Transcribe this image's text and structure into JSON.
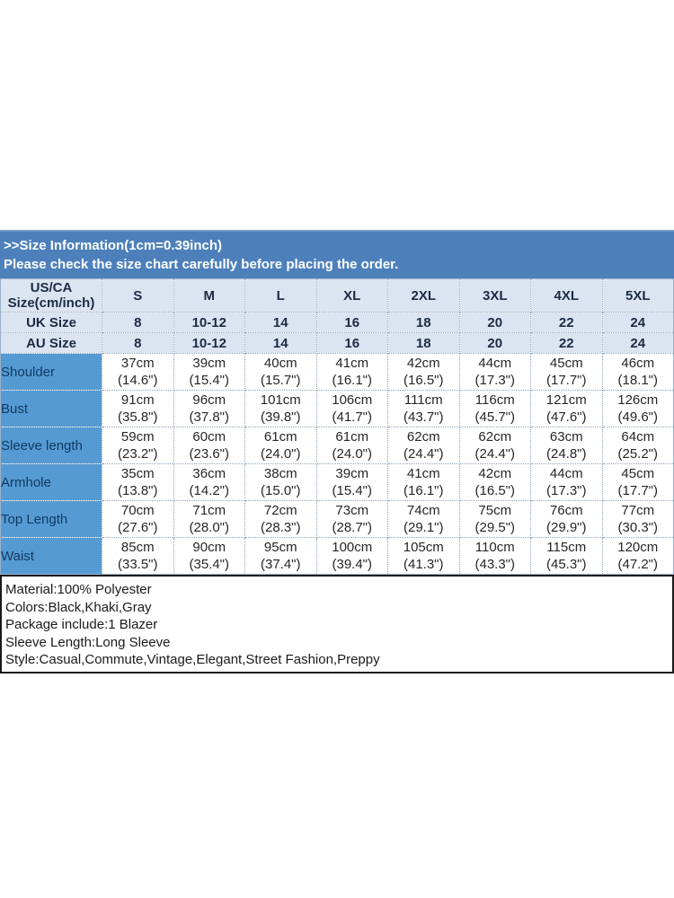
{
  "banner": {
    "title": ">>Size Information(1cm=0.39inch)",
    "subtitle": "Please check the size chart carefully before placing the order."
  },
  "size_chart": {
    "corner_label": "US/CA\nSize(cm/inch)",
    "size_headers": [
      "S",
      "M",
      "L",
      "XL",
      "2XL",
      "3XL",
      "4XL",
      "5XL"
    ],
    "region_rows": [
      {
        "label": "UK Size",
        "values": [
          "8",
          "10-12",
          "14",
          "16",
          "18",
          "20",
          "22",
          "24"
        ]
      },
      {
        "label": "AU Size",
        "values": [
          "8",
          "10-12",
          "14",
          "16",
          "18",
          "20",
          "22",
          "24"
        ]
      }
    ],
    "measurement_rows": [
      {
        "label": "Shoulder",
        "values": [
          "37cm\n(14.6\")",
          "39cm\n(15.4\")",
          "40cm\n(15.7\")",
          "41cm\n(16.1\")",
          "42cm\n(16.5\")",
          "44cm\n(17.3\")",
          "45cm\n(17.7\")",
          "46cm\n(18.1\")"
        ]
      },
      {
        "label": "Bust",
        "values": [
          "91cm\n(35.8\")",
          "96cm\n(37.8\")",
          "101cm\n(39.8\")",
          "106cm\n(41.7\")",
          "111cm\n(43.7\")",
          "116cm\n(45.7\")",
          "121cm\n(47.6\")",
          "126cm\n(49.6\")"
        ]
      },
      {
        "label": "Sleeve length",
        "values": [
          "59cm\n(23.2\")",
          "60cm\n(23.6\")",
          "61cm\n(24.0\")",
          "61cm\n(24.0\")",
          "62cm\n(24.4\")",
          "62cm\n(24.4\")",
          "63cm\n(24.8\")",
          "64cm\n(25.2\")"
        ]
      },
      {
        "label": "Armhole",
        "values": [
          "35cm\n(13.8\")",
          "36cm\n(14.2\")",
          "38cm\n(15.0\")",
          "39cm\n(15.4\")",
          "41cm\n(16.1\")",
          "42cm\n(16.5\")",
          "44cm\n(17.3\")",
          "45cm\n(17.7\")"
        ]
      },
      {
        "label": "Top Length",
        "values": [
          "70cm\n(27.6\")",
          "71cm\n(28.0\")",
          "72cm\n(28.3\")",
          "73cm\n(28.7\")",
          "74cm\n(29.1\")",
          "75cm\n(29.5\")",
          "76cm\n(29.9\")",
          "77cm\n(30.3\")"
        ]
      },
      {
        "label": "Waist",
        "values": [
          "85cm\n(33.5\")",
          "90cm\n(35.4\")",
          "95cm\n(37.4\")",
          "100cm\n(39.4\")",
          "105cm\n(41.3\")",
          "110cm\n(43.3\")",
          "115cm\n(45.3\")",
          "120cm\n(47.2\")"
        ]
      }
    ]
  },
  "info_box": {
    "lines": [
      "Material:100% Polyester",
      "Colors:Black,Khaki,Gray",
      "Package include:1 Blazer",
      "Sleeve Length:Long Sleeve",
      "Style:Casual,Commute,Vintage,Elegant,Street Fashion,Preppy"
    ]
  },
  "colors": {
    "banner_bg": "#4d80bb",
    "banner_text": "#ffffff",
    "header_bg": "#dbe5f1",
    "header_text": "#1b2a45",
    "label_bg": "#569ad3",
    "label_text": "#103a62",
    "info_border": "#1a1a1a"
  }
}
